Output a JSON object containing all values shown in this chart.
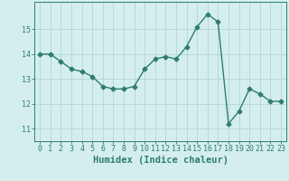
{
  "x": [
    0,
    1,
    2,
    3,
    4,
    5,
    6,
    7,
    8,
    9,
    10,
    11,
    12,
    13,
    14,
    15,
    16,
    17,
    18,
    19,
    20,
    21,
    22,
    23
  ],
  "y": [
    14.0,
    14.0,
    13.7,
    13.4,
    13.3,
    13.1,
    12.7,
    12.6,
    12.6,
    12.7,
    13.4,
    13.8,
    13.9,
    13.8,
    14.3,
    15.1,
    15.6,
    15.3,
    11.2,
    11.7,
    12.6,
    12.4,
    12.1,
    12.1
  ],
  "line_color": "#2e7d6e",
  "marker": "D",
  "marker_size": 2.5,
  "linewidth": 1.0,
  "xlabel": "Humidex (Indice chaleur)",
  "ylabel": "",
  "ylim": [
    10.5,
    16.1
  ],
  "xlim": [
    -0.5,
    23.5
  ],
  "yticks": [
    11,
    12,
    13,
    14,
    15
  ],
  "xticks": [
    0,
    1,
    2,
    3,
    4,
    5,
    6,
    7,
    8,
    9,
    10,
    11,
    12,
    13,
    14,
    15,
    16,
    17,
    18,
    19,
    20,
    21,
    22,
    23
  ],
  "bg_color": "#d4eeee",
  "grid_color": "#b8d8d8",
  "tick_fontsize": 6,
  "xlabel_fontsize": 7.5,
  "title": ""
}
